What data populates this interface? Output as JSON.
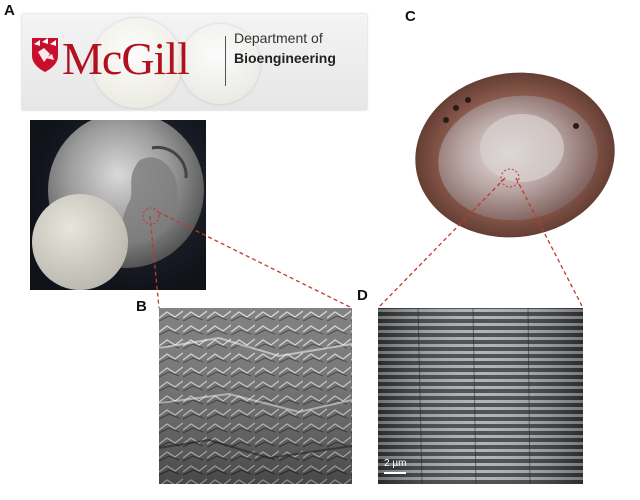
{
  "panels": {
    "a": "A",
    "b": "B",
    "c": "C",
    "d": "D"
  },
  "banner": {
    "wordmark": "McGill",
    "department_line1": "Department of",
    "department_line2": "Bioengineering",
    "brand_color": "#b1101e"
  },
  "sem_d": {
    "scale_label": "2 µm"
  }
}
